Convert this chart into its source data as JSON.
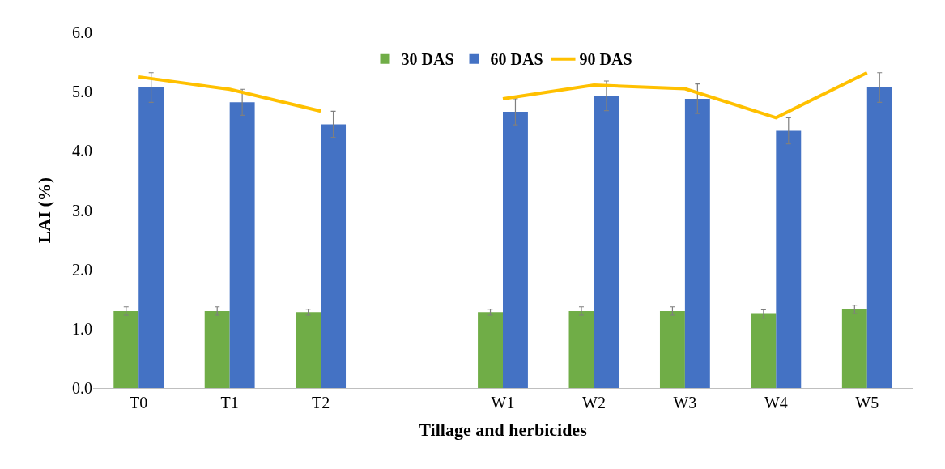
{
  "chart_data": {
    "type": "bar",
    "xlabel": "Tillage and herbicides",
    "ylabel": "LAI (%)",
    "categories": [
      "T0",
      "T1",
      "T2",
      null,
      "W1",
      "W2",
      "W3",
      "W4",
      "W5"
    ],
    "series": [
      {
        "name": "30 DAS",
        "color": "#70ad47",
        "values": [
          1.3,
          1.3,
          1.28,
          null,
          1.28,
          1.3,
          1.3,
          1.25,
          1.33
        ],
        "errors": [
          0.07,
          0.07,
          0.05,
          null,
          0.05,
          0.07,
          0.07,
          0.07,
          0.07
        ]
      },
      {
        "name": "60 DAS",
        "color": "#4472c4",
        "values": [
          5.07,
          4.82,
          4.45,
          null,
          4.66,
          4.93,
          4.88,
          4.34,
          5.07
        ],
        "errors": [
          0.25,
          0.22,
          0.22,
          null,
          0.22,
          0.25,
          0.25,
          0.22,
          0.25
        ]
      },
      {
        "name": "90 DAS",
        "type": "line",
        "color": "#ffc000",
        "values": [
          5.25,
          5.04,
          4.67,
          null,
          4.88,
          5.11,
          5.05,
          4.56,
          5.32
        ]
      }
    ],
    "ylim": [
      0,
      6
    ],
    "yticks": [
      {
        "value": 0,
        "label": "0.0"
      },
      {
        "value": 1,
        "label": "1.0"
      },
      {
        "value": 2,
        "label": "2.0"
      },
      {
        "value": 3,
        "label": "3.0"
      },
      {
        "value": 4,
        "label": "4.0"
      },
      {
        "value": 5,
        "label": "5.0"
      },
      {
        "value": 6,
        "label": "6.0"
      }
    ],
    "grid": false,
    "legend": "top",
    "marker": "none"
  }
}
